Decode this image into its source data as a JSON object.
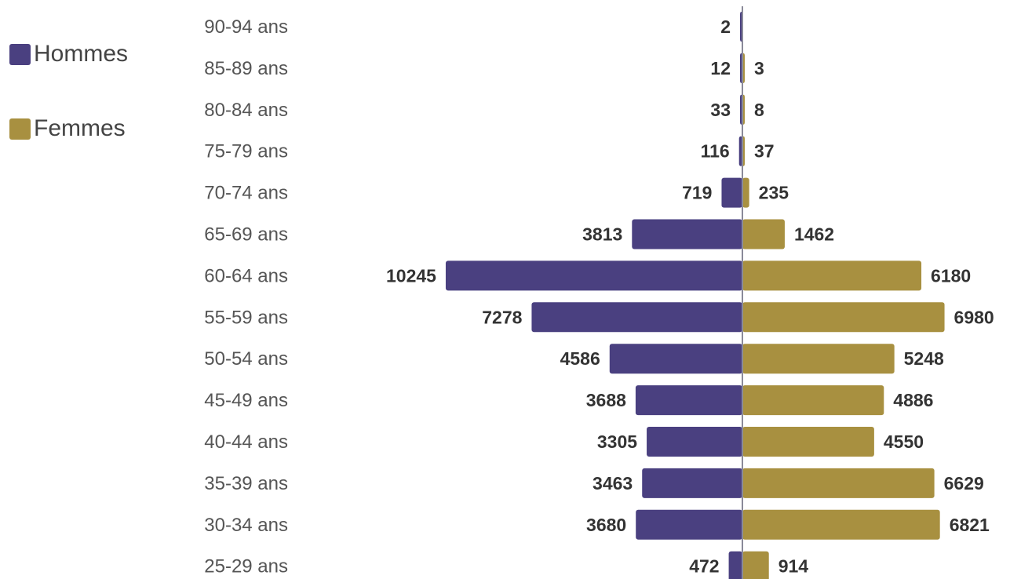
{
  "chart_data": {
    "type": "bar",
    "orientation": "horizontal-pyramid",
    "categories": [
      "90-94 ans",
      "85-89 ans",
      "80-84 ans",
      "75-79 ans",
      "70-74 ans",
      "65-69 ans",
      "60-64 ans",
      "55-59 ans",
      "50-54 ans",
      "45-49 ans",
      "40-44 ans",
      "35-39 ans",
      "30-34 ans",
      "25-29 ans"
    ],
    "series": [
      {
        "name": "Hommes",
        "color": "#4a4080",
        "side": "left",
        "values": [
          2,
          12,
          33,
          116,
          719,
          3813,
          10245,
          7278,
          4586,
          3688,
          3305,
          3463,
          3680,
          472
        ]
      },
      {
        "name": "Femmes",
        "color": "#a89040",
        "side": "right",
        "values": [
          null,
          3,
          8,
          37,
          235,
          1462,
          6180,
          6980,
          5248,
          4886,
          4550,
          6629,
          6821,
          914
        ]
      }
    ],
    "legend_position": "top-left",
    "grid": false
  }
}
